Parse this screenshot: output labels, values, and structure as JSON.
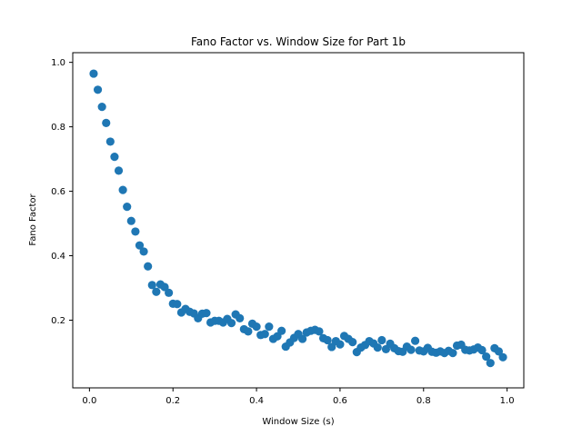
{
  "chart_data": {
    "type": "scatter",
    "title": "Fano Factor vs. Window Size for Part 1b",
    "xlabel": "Window Size (s)",
    "ylabel": "Fano Factor",
    "xlim": [
      -0.04,
      1.04
    ],
    "ylim": [
      -0.01,
      1.03
    ],
    "xticks": [
      0.0,
      0.2,
      0.4,
      0.6,
      0.8,
      1.0
    ],
    "xtick_labels": [
      "0.0",
      "0.2",
      "0.4",
      "0.6",
      "0.8",
      "1.0"
    ],
    "yticks": [
      0.2,
      0.4,
      0.6,
      0.8,
      1.0
    ],
    "ytick_labels": [
      "0.2",
      "0.4",
      "0.6",
      "0.8",
      "1.0"
    ],
    "grid": false,
    "marker_color": "#1f77b4",
    "series": [
      {
        "x": [
          0.01,
          0.02,
          0.03,
          0.04,
          0.05,
          0.06,
          0.07,
          0.08,
          0.09,
          0.1,
          0.11,
          0.12,
          0.13,
          0.14,
          0.15,
          0.16,
          0.17,
          0.18,
          0.19,
          0.2,
          0.21,
          0.22,
          0.23,
          0.24,
          0.25,
          0.26,
          0.27,
          0.28,
          0.29,
          0.3,
          0.31,
          0.32,
          0.33,
          0.34,
          0.35,
          0.36,
          0.37,
          0.38,
          0.39,
          0.4,
          0.41,
          0.42,
          0.43,
          0.44,
          0.45,
          0.46,
          0.47,
          0.48,
          0.49,
          0.5,
          0.51,
          0.52,
          0.53,
          0.54,
          0.55,
          0.56,
          0.57,
          0.58,
          0.59,
          0.6,
          0.61,
          0.62,
          0.63,
          0.64,
          0.65,
          0.66,
          0.67,
          0.68,
          0.69,
          0.7,
          0.71,
          0.72,
          0.73,
          0.74,
          0.75,
          0.76,
          0.77,
          0.78,
          0.79,
          0.8,
          0.81,
          0.82,
          0.83,
          0.84,
          0.85,
          0.86,
          0.87,
          0.88,
          0.89,
          0.9,
          0.91,
          0.92,
          0.93,
          0.94,
          0.95,
          0.96,
          0.97,
          0.98,
          0.99
        ],
        "y": [
          0.965,
          0.915,
          0.862,
          0.812,
          0.754,
          0.707,
          0.664,
          0.604,
          0.552,
          0.508,
          0.475,
          0.432,
          0.413,
          0.367,
          0.309,
          0.288,
          0.311,
          0.303,
          0.285,
          0.251,
          0.25,
          0.224,
          0.235,
          0.226,
          0.221,
          0.206,
          0.22,
          0.222,
          0.193,
          0.198,
          0.198,
          0.193,
          0.204,
          0.191,
          0.218,
          0.206,
          0.172,
          0.165,
          0.189,
          0.18,
          0.154,
          0.157,
          0.18,
          0.142,
          0.15,
          0.167,
          0.118,
          0.131,
          0.145,
          0.157,
          0.142,
          0.162,
          0.167,
          0.17,
          0.165,
          0.144,
          0.138,
          0.117,
          0.135,
          0.125,
          0.151,
          0.142,
          0.132,
          0.101,
          0.115,
          0.123,
          0.135,
          0.128,
          0.115,
          0.138,
          0.11,
          0.127,
          0.113,
          0.104,
          0.102,
          0.118,
          0.108,
          0.136,
          0.106,
          0.103,
          0.114,
          0.102,
          0.099,
          0.103,
          0.098,
          0.105,
          0.098,
          0.121,
          0.124,
          0.108,
          0.106,
          0.109,
          0.115,
          0.107,
          0.087,
          0.067,
          0.113,
          0.103,
          0.085
        ]
      }
    ]
  }
}
